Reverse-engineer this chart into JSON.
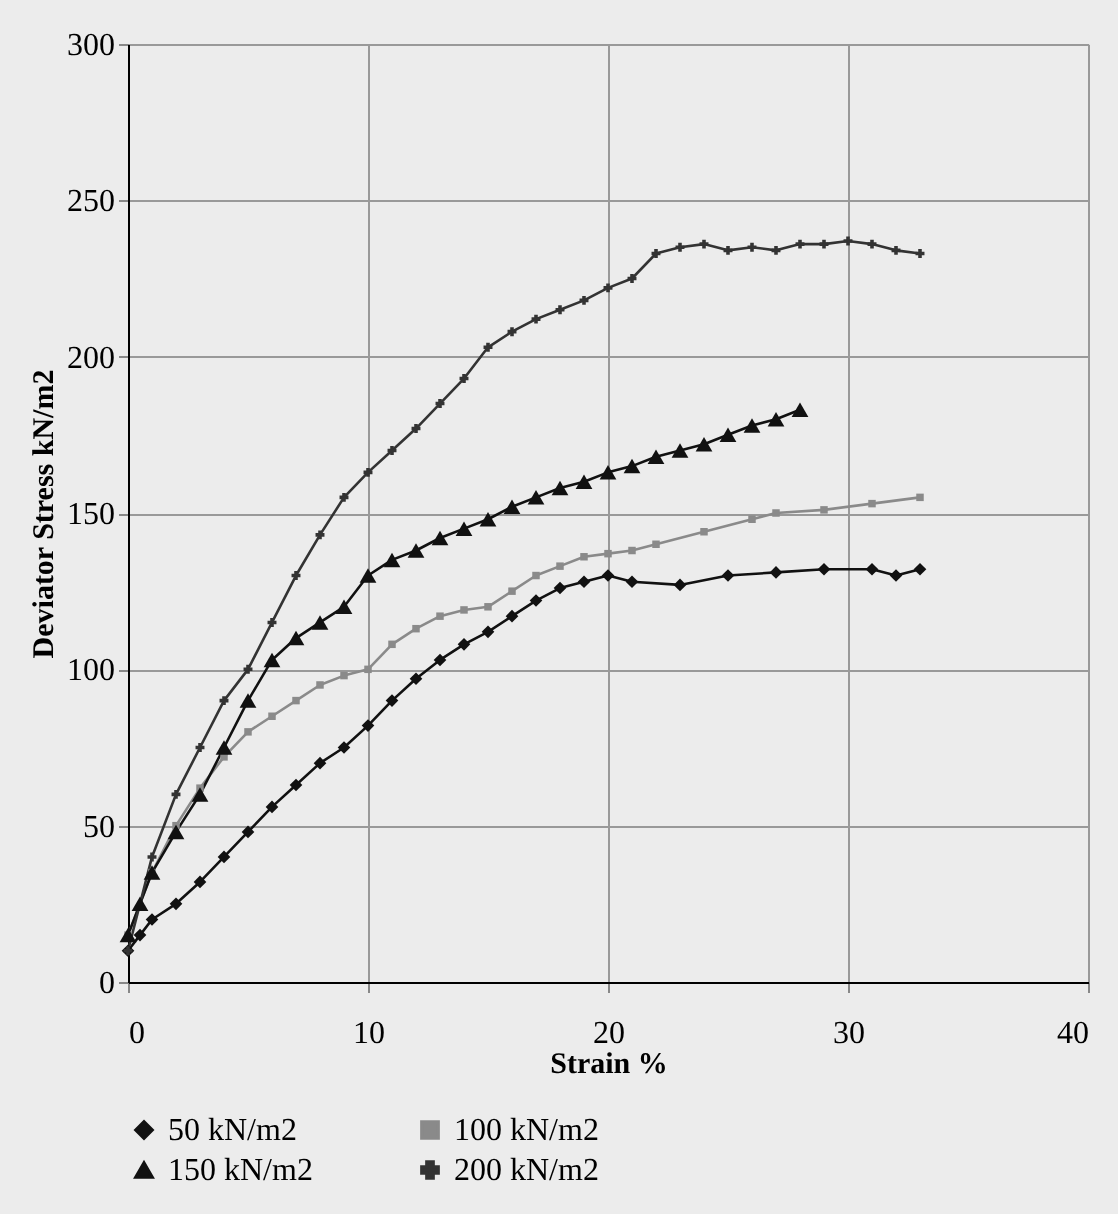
{
  "chart_data": {
    "type": "line",
    "xlabel": "Strain %",
    "ylabel": "Deviator Stress kN/m2",
    "xlim": [
      0,
      40
    ],
    "xticks": [
      0,
      10,
      20,
      30,
      40
    ],
    "ylim": [
      0,
      300
    ],
    "yticks": [
      0,
      50,
      100,
      150,
      200,
      250,
      300
    ],
    "grid": true,
    "legend": "bottom",
    "line_style": "solid",
    "series": [
      {
        "name": "50 kN/m2",
        "color": "#111111",
        "marker": "diamond",
        "x": [
          0,
          0.5,
          1,
          2,
          3,
          4,
          5,
          6,
          7,
          8,
          9,
          10,
          11,
          12,
          13,
          14,
          15,
          16,
          17,
          18,
          19,
          20,
          21,
          23,
          25,
          27,
          29,
          31,
          32,
          33
        ],
        "values": [
          10,
          15,
          20,
          25,
          32,
          40,
          48,
          56,
          63,
          70,
          75,
          82,
          90,
          97,
          103,
          108,
          112,
          117,
          122,
          126,
          128,
          130,
          128,
          127,
          130,
          131,
          132,
          132,
          130,
          132
        ]
      },
      {
        "name": "100 kN/m2",
        "color": "#8a8a8a",
        "marker": "square",
        "x": [
          0,
          1,
          2,
          3,
          4,
          5,
          6,
          7,
          8,
          9,
          10,
          11,
          12,
          13,
          14,
          15,
          16,
          17,
          18,
          19,
          20,
          21,
          22,
          24,
          26,
          27,
          29,
          31,
          33
        ],
        "values": [
          15,
          35,
          50,
          62,
          72,
          80,
          85,
          90,
          95,
          98,
          100,
          108,
          113,
          117,
          119,
          120,
          125,
          130,
          133,
          136,
          137,
          138,
          140,
          144,
          148,
          150,
          151,
          153,
          155
        ]
      },
      {
        "name": "150 kN/m2",
        "color": "#111111",
        "marker": "triangle",
        "x": [
          0,
          0.5,
          1,
          2,
          3,
          4,
          5,
          6,
          7,
          8,
          9,
          10,
          11,
          12,
          13,
          14,
          15,
          16,
          17,
          18,
          19,
          20,
          21,
          22,
          23,
          24,
          25,
          26,
          27,
          28
        ],
        "values": [
          15,
          25,
          35,
          48,
          60,
          75,
          90,
          103,
          110,
          115,
          120,
          130,
          135,
          138,
          142,
          145,
          148,
          152,
          155,
          158,
          160,
          163,
          165,
          168,
          170,
          172,
          175,
          178,
          180,
          183
        ]
      },
      {
        "name": "200 kN/m2",
        "color": "#333333",
        "marker": "cross",
        "x": [
          0,
          1,
          2,
          3,
          4,
          5,
          6,
          7,
          8,
          9,
          10,
          11,
          12,
          13,
          14,
          15,
          16,
          17,
          18,
          19,
          20,
          21,
          22,
          23,
          24,
          25,
          26,
          27,
          28,
          29,
          30,
          31,
          32,
          33
        ],
        "values": [
          10,
          40,
          60,
          75,
          90,
          100,
          115,
          130,
          143,
          155,
          163,
          170,
          177,
          185,
          193,
          203,
          208,
          212,
          215,
          218,
          222,
          225,
          233,
          235,
          236,
          234,
          235,
          234,
          236,
          236,
          237,
          236,
          234,
          233
        ]
      }
    ]
  }
}
